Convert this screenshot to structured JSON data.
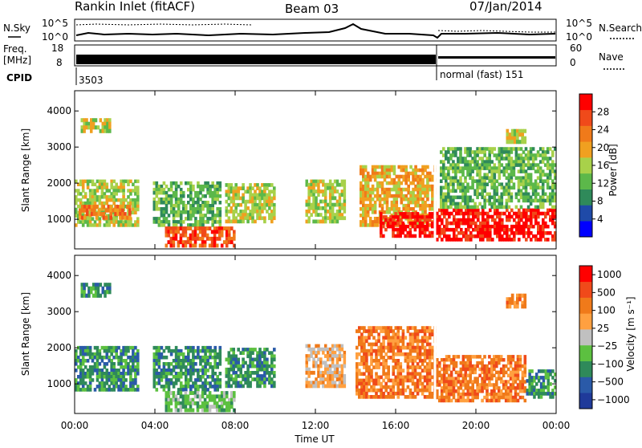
{
  "header": {
    "station": "Rankin Inlet (fitACF)",
    "beam": "Beam 03",
    "date": "07/Jan/2014"
  },
  "noise_panel": {
    "left_label": "N.Sky",
    "right_label": "N.Search",
    "left_ticks": [
      "10^5",
      "10^0"
    ],
    "right_ticks": [
      "10^5",
      "10^0"
    ]
  },
  "freq_panel": {
    "left_label_line1": "Freq.",
    "left_label_line2": "[MHz]",
    "right_label": "Nave",
    "left_ticks": [
      "18",
      "8"
    ],
    "right_ticks": [
      "60",
      "0"
    ]
  },
  "cpid": {
    "label": "CPID",
    "first": "3503",
    "second": "normal (fast) 151"
  },
  "x_axis": {
    "label": "Time UT",
    "ticks": [
      "00:00",
      "04:00",
      "08:00",
      "12:00",
      "16:00",
      "20:00",
      "00:00"
    ]
  },
  "colors": {
    "power": [
      "#0000ff",
      "#1f4aa8",
      "#2f8a5a",
      "#5cb84a",
      "#a8d14a",
      "#f0a020",
      "#f07a1a",
      "#f04a1a",
      "#ff0000"
    ],
    "velocity": [
      "#1f3a9a",
      "#2a5aa8",
      "#2f8a5a",
      "#5cc040",
      "#c0c0c0",
      "#ffa040",
      "#f07a1a",
      "#f04a1a",
      "#ff0000"
    ]
  },
  "chart_data": [
    {
      "type": "heatmap",
      "name": "power",
      "ylabel": "Slant Range [km]",
      "xlabel": "",
      "y_ticks": [
        "1000",
        "2000",
        "3000",
        "4000"
      ],
      "ylim": [
        180,
        4560
      ],
      "xlim_hours": [
        0,
        24
      ],
      "colorbar_label": "Power [dB]",
      "colorbar_ticks": [
        "4",
        "8",
        "12",
        "16",
        "20",
        "24",
        "28"
      ],
      "regions": [
        {
          "t0": 0.0,
          "t1": 3.2,
          "r0": 800,
          "r1": 2100,
          "level": 4
        },
        {
          "t0": 0.2,
          "t1": 2.8,
          "r0": 1000,
          "r1": 1400,
          "level": 6
        },
        {
          "t0": 3.9,
          "t1": 7.3,
          "r0": 800,
          "r1": 2050,
          "level": 3
        },
        {
          "t0": 4.5,
          "t1": 8.0,
          "r0": 230,
          "r1": 800,
          "level": 7
        },
        {
          "t0": 7.5,
          "t1": 10.0,
          "r0": 900,
          "r1": 2000,
          "level": 4
        },
        {
          "t0": 11.5,
          "t1": 13.5,
          "r0": 900,
          "r1": 2100,
          "level": 4
        },
        {
          "t0": 14.2,
          "t1": 18.0,
          "r0": 800,
          "r1": 2500,
          "level": 5
        },
        {
          "t0": 15.2,
          "t1": 18.0,
          "r0": 500,
          "r1": 1200,
          "level": 8
        },
        {
          "t0": 18.0,
          "t1": 24.0,
          "r0": 400,
          "r1": 1300,
          "level": 8
        },
        {
          "t0": 18.2,
          "t1": 24.0,
          "r0": 1300,
          "r1": 3000,
          "level": 3
        },
        {
          "t0": 0.3,
          "t1": 1.8,
          "r0": 3400,
          "r1": 3800,
          "level": 4
        },
        {
          "t0": 21.5,
          "t1": 22.5,
          "r0": 3100,
          "r1": 3500,
          "level": 4
        }
      ]
    },
    {
      "type": "heatmap",
      "name": "velocity",
      "ylabel": "Slant Range [km]",
      "xlabel": "Time UT",
      "y_ticks": [
        "1000",
        "2000",
        "3000",
        "4000"
      ],
      "ylim": [
        180,
        4560
      ],
      "xlim_hours": [
        0,
        24
      ],
      "colorbar_label": "Velocity [m s⁻¹]",
      "colorbar_ticks": [
        "1000",
        "500",
        "100",
        "25",
        "−25",
        "−100",
        "−500",
        "−1000"
      ],
      "regions": [
        {
          "t0": 0.0,
          "t1": 3.2,
          "r0": 800,
          "r1": 2050,
          "level": 2
        },
        {
          "t0": 3.9,
          "t1": 7.3,
          "r0": 800,
          "r1": 2050,
          "level": 2
        },
        {
          "t0": 4.5,
          "t1": 8.0,
          "r0": 230,
          "r1": 800,
          "level": 3
        },
        {
          "t0": 7.5,
          "t1": 10.0,
          "r0": 900,
          "r1": 2000,
          "level": 2
        },
        {
          "t0": 11.5,
          "t1": 13.5,
          "r0": 900,
          "r1": 2100,
          "level": 5
        },
        {
          "t0": 14.0,
          "t1": 18.0,
          "r0": 600,
          "r1": 2600,
          "level": 6
        },
        {
          "t0": 18.0,
          "t1": 22.5,
          "r0": 500,
          "r1": 1800,
          "level": 6
        },
        {
          "t0": 22.5,
          "t1": 24.0,
          "r0": 600,
          "r1": 1400,
          "level": 2
        },
        {
          "t0": 0.3,
          "t1": 1.8,
          "r0": 3400,
          "r1": 3800,
          "level": 2
        },
        {
          "t0": 21.5,
          "t1": 22.5,
          "r0": 3100,
          "r1": 3500,
          "level": 6
        }
      ]
    }
  ]
}
